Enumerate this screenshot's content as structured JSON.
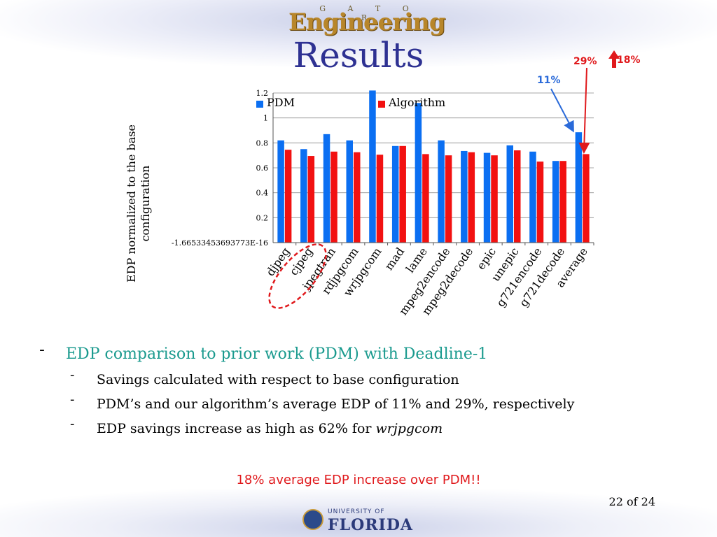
{
  "slide": {
    "title": "Results",
    "page_number": "22 of 24",
    "footer_note": "18% average EDP increase over PDM!!",
    "logo_top": {
      "top_text": "G A T O R",
      "main_text": "Engineering"
    },
    "logo_bottom": {
      "top_text": "UNIVERSITY OF",
      "main_text": "FLORIDA"
    }
  },
  "annotations": {
    "pdm_avg": "11%",
    "alg_avg": "29%",
    "increase": "18%"
  },
  "bullets": {
    "main": "EDP comparison to prior work (PDM) with Deadline-1",
    "sub1": "Savings calculated with respect to base configuration",
    "sub2": "PDM’s and our algorithm’s average EDP of 11% and 29%, respectively",
    "sub3_prefix": "EDP savings increase as high as 62% for ",
    "sub3_em": "wrjpgcom"
  },
  "colors": {
    "pdm": "#0b6ff2",
    "algorithm": "#f21111",
    "title": "#2e3192",
    "bullet_main": "#1a9a8e",
    "annotation_blue": "#2a6ad9",
    "annotation_red": "#e0191c"
  },
  "chart_data": {
    "type": "bar",
    "ylabel": "EDP normalized to the base configuration",
    "y_ticks": [
      "-1.66533453693773E-16",
      "0.2",
      "0.4",
      "0.6",
      "0.8",
      "1",
      "1.2"
    ],
    "ylim": [
      0,
      1.2
    ],
    "legend_position": "top",
    "categories": [
      "djpeg",
      "cjpeg",
      "jpegtran",
      "rdjpgcom",
      "wrjpgcom",
      "mad",
      "lame",
      "mpeg2encode",
      "mpeg2decode",
      "epic",
      "unepic",
      "g721encode",
      "g721decode",
      "average"
    ],
    "series": [
      {
        "name": "PDM",
        "values": [
          0.82,
          0.75,
          0.87,
          0.82,
          1.22,
          0.775,
          1.12,
          0.82,
          0.735,
          0.72,
          0.78,
          0.73,
          0.655,
          0.885
        ]
      },
      {
        "name": "Algorithm",
        "values": [
          0.745,
          0.695,
          0.73,
          0.725,
          0.705,
          0.775,
          0.71,
          0.7,
          0.725,
          0.7,
          0.74,
          0.65,
          0.655,
          0.71
        ]
      }
    ]
  }
}
